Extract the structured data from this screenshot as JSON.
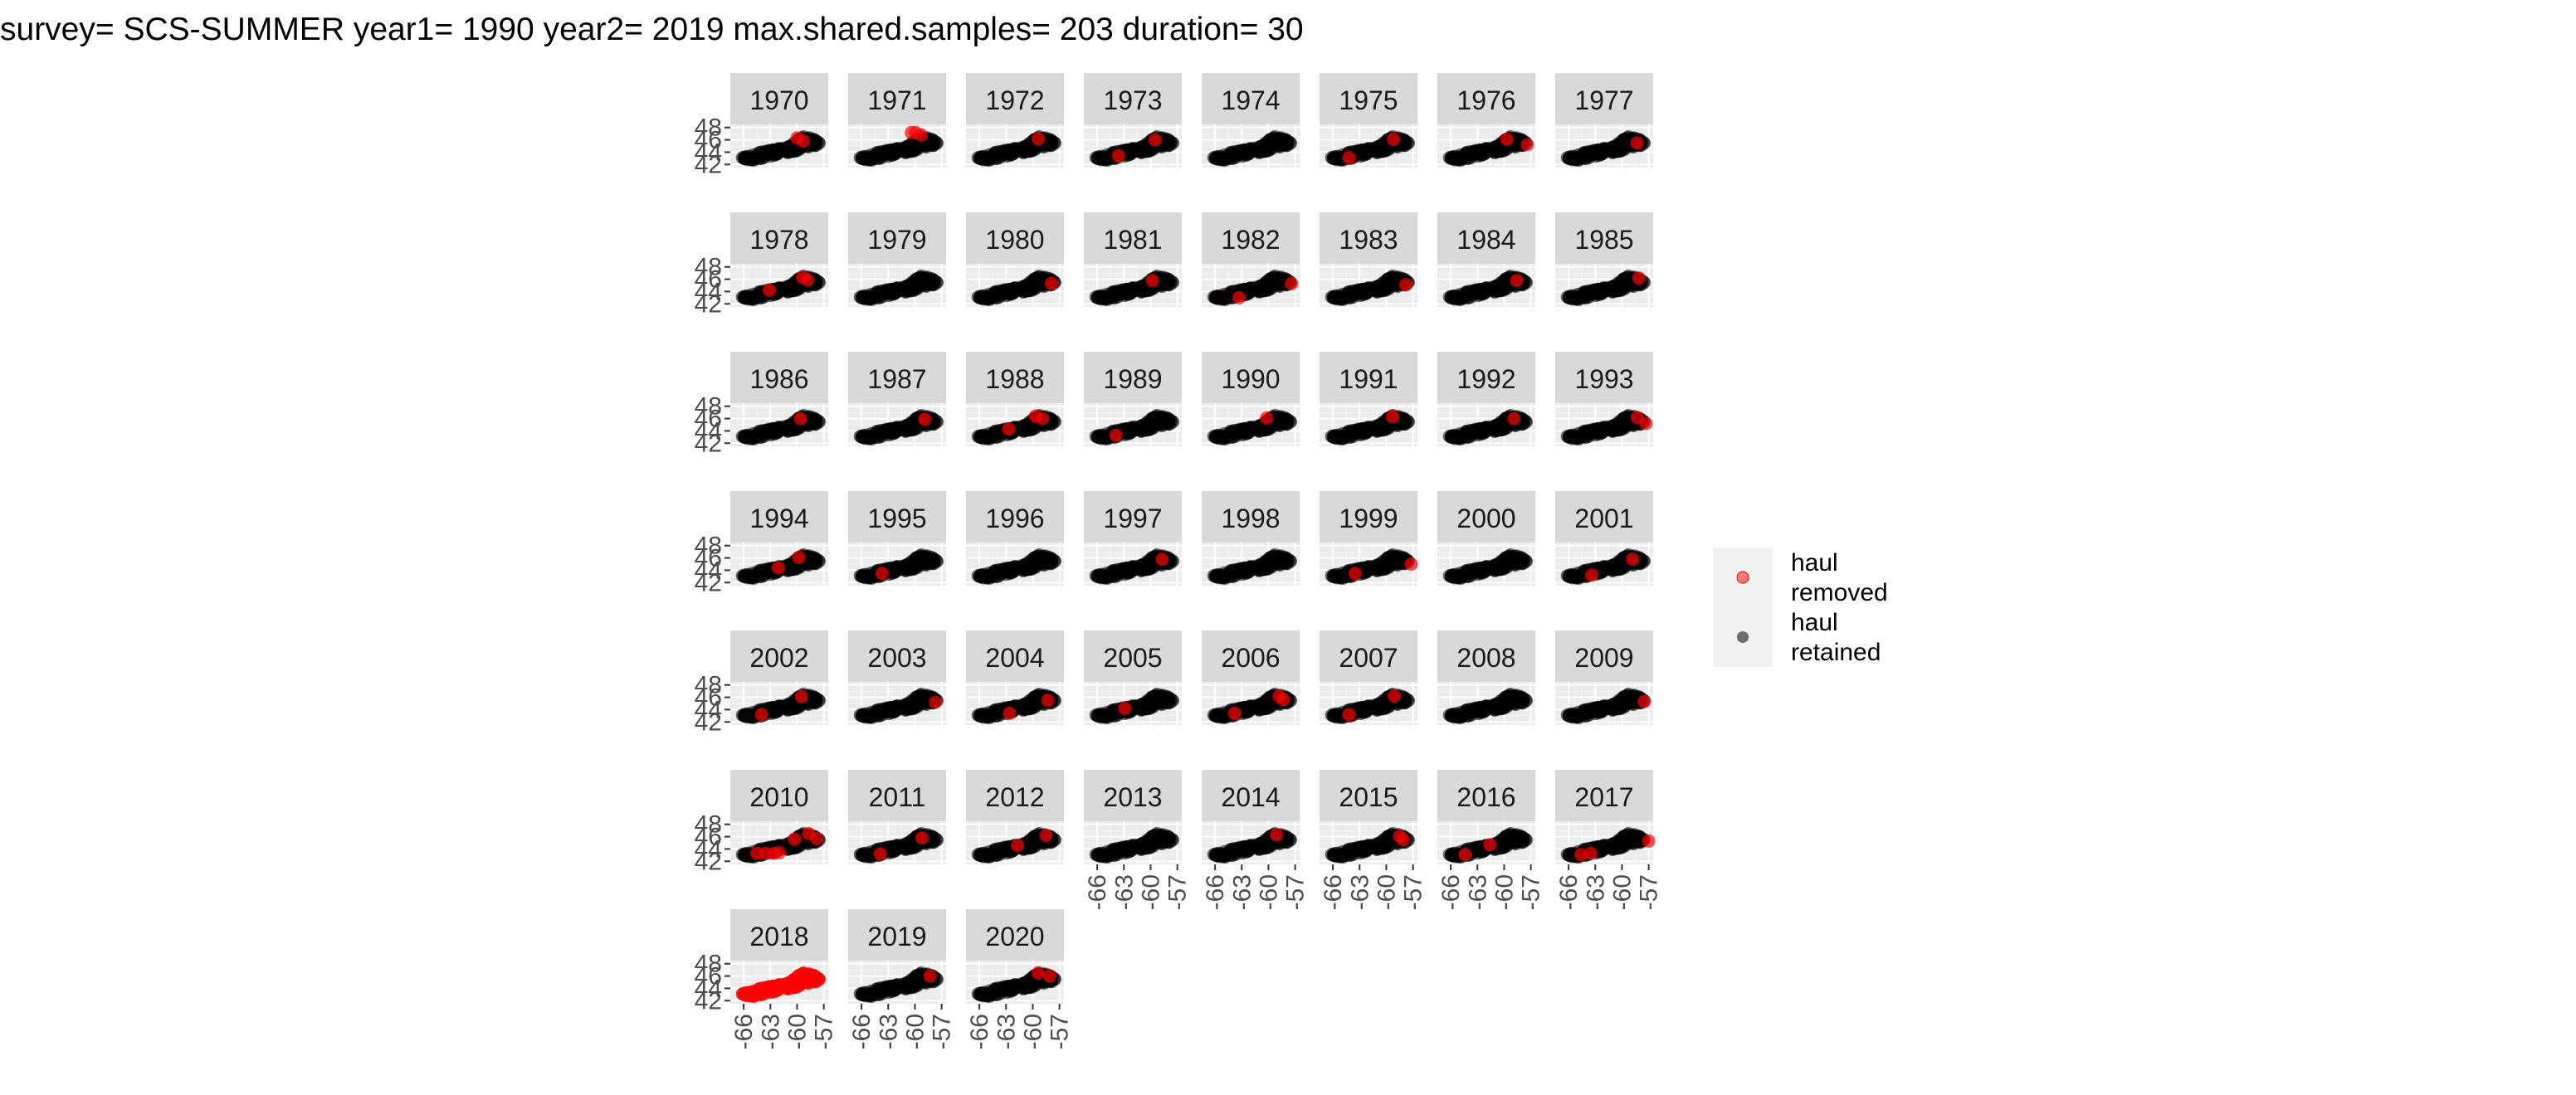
{
  "chart_data": {
    "type": "scatter",
    "title": "survey= SCS-SUMMER year1= 1990 year2= 2019 max.shared.samples= 203 duration= 30",
    "xlabel": "",
    "ylabel": "",
    "x_ticks": [
      "-66",
      "-63",
      "-60",
      "-57"
    ],
    "y_ticks": [
      "42",
      "44",
      "46",
      "48"
    ],
    "xlim": [
      -67.5,
      -56.5
    ],
    "ylim": [
      41.5,
      48.5
    ],
    "grid": true,
    "legend_placement": "right",
    "legend": [
      {
        "label": "haul removed",
        "color": "#ff0000"
      },
      {
        "label": "haul retained",
        "color": "#000000"
      }
    ],
    "series": [
      {
        "name": "haul removed",
        "color": "#ff0000"
      },
      {
        "name": "haul retained",
        "color": "#000000"
      }
    ],
    "shelf_outline": [
      [
        -66.3,
        43.2
      ],
      [
        -65.6,
        43.4
      ],
      [
        -64.5,
        43.9
      ],
      [
        -63.3,
        44.3
      ],
      [
        -62.0,
        44.6
      ],
      [
        -61.0,
        45.0
      ],
      [
        -60.3,
        45.5
      ],
      [
        -59.8,
        46.2
      ],
      [
        -59.4,
        46.6
      ],
      [
        -58.4,
        46.3
      ],
      [
        -57.7,
        45.8
      ],
      [
        -57.3,
        45.3
      ],
      [
        -58.1,
        44.9
      ],
      [
        -59.2,
        44.5
      ],
      [
        -60.4,
        44.0
      ],
      [
        -61.6,
        43.7
      ],
      [
        -62.8,
        43.3
      ],
      [
        -63.9,
        42.9
      ],
      [
        -65.0,
        42.6
      ],
      [
        -66.0,
        42.8
      ]
    ],
    "panels": [
      {
        "year": "1970",
        "removed": [
          [
            -60.0,
            46.3
          ],
          [
            -59.3,
            45.8
          ]
        ]
      },
      {
        "year": "1971",
        "removed": [
          [
            -60.4,
            47.2
          ],
          [
            -59.9,
            47.2
          ],
          [
            -59.3,
            46.8
          ]
        ]
      },
      {
        "year": "1972",
        "removed": [
          [
            -59.4,
            46.2
          ]
        ]
      },
      {
        "year": "1973",
        "removed": [
          [
            -59.5,
            46.0
          ],
          [
            -63.6,
            43.4
          ]
        ]
      },
      {
        "year": "1974",
        "removed": []
      },
      {
        "year": "1975",
        "removed": [
          [
            -64.2,
            43.1
          ],
          [
            -59.2,
            46.1
          ]
        ]
      },
      {
        "year": "1976",
        "removed": [
          [
            -59.7,
            46.1
          ],
          [
            -57.4,
            45.2
          ]
        ]
      },
      {
        "year": "1977",
        "removed": [
          [
            -58.3,
            45.5
          ]
        ]
      },
      {
        "year": "1978",
        "removed": [
          [
            -63.1,
            44.2
          ],
          [
            -59.4,
            46.3
          ],
          [
            -58.8,
            45.9
          ]
        ]
      },
      {
        "year": "1979",
        "removed": []
      },
      {
        "year": "1980",
        "removed": [
          [
            -57.9,
            45.3
          ]
        ]
      },
      {
        "year": "1981",
        "removed": [
          [
            -59.8,
            45.8
          ]
        ]
      },
      {
        "year": "1982",
        "removed": [
          [
            -63.3,
            43.0
          ],
          [
            -57.4,
            45.3
          ]
        ]
      },
      {
        "year": "1983",
        "removed": [
          [
            -57.8,
            45.1
          ]
        ]
      },
      {
        "year": "1984",
        "removed": [
          [
            -58.6,
            45.8
          ]
        ]
      },
      {
        "year": "1985",
        "removed": [
          [
            -58.1,
            46.2
          ]
        ]
      },
      {
        "year": "1986",
        "removed": [
          [
            -59.6,
            46.0
          ]
        ]
      },
      {
        "year": "1987",
        "removed": [
          [
            -58.9,
            45.9
          ]
        ]
      },
      {
        "year": "1988",
        "removed": [
          [
            -62.7,
            44.3
          ],
          [
            -59.7,
            46.4
          ],
          [
            -58.9,
            46.0
          ]
        ]
      },
      {
        "year": "1989",
        "removed": [
          [
            -63.9,
            43.3
          ]
        ]
      },
      {
        "year": "1990",
        "removed": [
          [
            -60.2,
            46.1
          ]
        ]
      },
      {
        "year": "1991",
        "removed": [
          [
            -59.3,
            46.3
          ]
        ]
      },
      {
        "year": "1992",
        "removed": [
          [
            -58.9,
            46.0
          ]
        ]
      },
      {
        "year": "1993",
        "removed": [
          [
            -58.3,
            46.2
          ],
          [
            -57.3,
            45.2
          ]
        ]
      },
      {
        "year": "1994",
        "removed": [
          [
            -62.1,
            44.4
          ],
          [
            -59.8,
            46.1
          ]
        ]
      },
      {
        "year": "1995",
        "removed": [
          [
            -63.7,
            43.5
          ]
        ]
      },
      {
        "year": "1996",
        "removed": []
      },
      {
        "year": "1997",
        "removed": [
          [
            -58.7,
            45.8
          ]
        ]
      },
      {
        "year": "1998",
        "removed": []
      },
      {
        "year": "1999",
        "removed": [
          [
            -63.5,
            43.5
          ],
          [
            -57.2,
            45.0
          ]
        ]
      },
      {
        "year": "2000",
        "removed": []
      },
      {
        "year": "2001",
        "removed": [
          [
            -63.4,
            43.2
          ],
          [
            -58.8,
            45.8
          ]
        ]
      },
      {
        "year": "2002",
        "removed": [
          [
            -64.0,
            43.2
          ],
          [
            -59.5,
            46.1
          ]
        ]
      },
      {
        "year": "2003",
        "removed": [
          [
            -57.7,
            45.2
          ]
        ]
      },
      {
        "year": "2004",
        "removed": [
          [
            -62.6,
            43.4
          ],
          [
            -58.3,
            45.5
          ]
        ]
      },
      {
        "year": "2005",
        "removed": [
          [
            -62.9,
            44.2
          ]
        ]
      },
      {
        "year": "2006",
        "removed": [
          [
            -63.8,
            43.4
          ],
          [
            -58.3,
            45.6
          ],
          [
            -58.8,
            46.2
          ]
        ]
      },
      {
        "year": "2007",
        "removed": [
          [
            -64.2,
            43.2
          ],
          [
            -59.1,
            46.2
          ]
        ]
      },
      {
        "year": "2008",
        "removed": []
      },
      {
        "year": "2009",
        "removed": [
          [
            -57.5,
            45.3
          ]
        ]
      },
      {
        "year": "2010",
        "removed": [
          [
            -64.5,
            43.3
          ],
          [
            -63.5,
            43.3
          ],
          [
            -62.6,
            43.3
          ],
          [
            -62.0,
            43.4
          ],
          [
            -60.3,
            45.6
          ],
          [
            -58.7,
            46.5
          ],
          [
            -57.8,
            45.7
          ]
        ]
      },
      {
        "year": "2011",
        "removed": [
          [
            -63.9,
            43.2
          ],
          [
            -59.2,
            45.8
          ]
        ]
      },
      {
        "year": "2012",
        "removed": [
          [
            -61.7,
            44.6
          ],
          [
            -58.5,
            46.2
          ]
        ]
      },
      {
        "year": "2013",
        "removed": []
      },
      {
        "year": "2014",
        "removed": [
          [
            -59.1,
            46.3
          ]
        ]
      },
      {
        "year": "2015",
        "removed": [
          [
            -58.5,
            46.1
          ],
          [
            -58.1,
            45.5
          ]
        ]
      },
      {
        "year": "2016",
        "removed": [
          [
            -64.4,
            43.1
          ],
          [
            -61.6,
            44.7
          ]
        ]
      },
      {
        "year": "2017",
        "removed": [
          [
            -64.6,
            43.1
          ],
          [
            -63.5,
            43.3
          ],
          [
            -57.0,
            45.3
          ]
        ]
      },
      {
        "year": "2018",
        "removed": "all"
      },
      {
        "year": "2019",
        "removed": [
          [
            -58.3,
            46.0
          ]
        ]
      },
      {
        "year": "2020",
        "removed": [
          [
            -59.4,
            46.5
          ],
          [
            -58.1,
            46.0
          ]
        ]
      }
    ]
  }
}
